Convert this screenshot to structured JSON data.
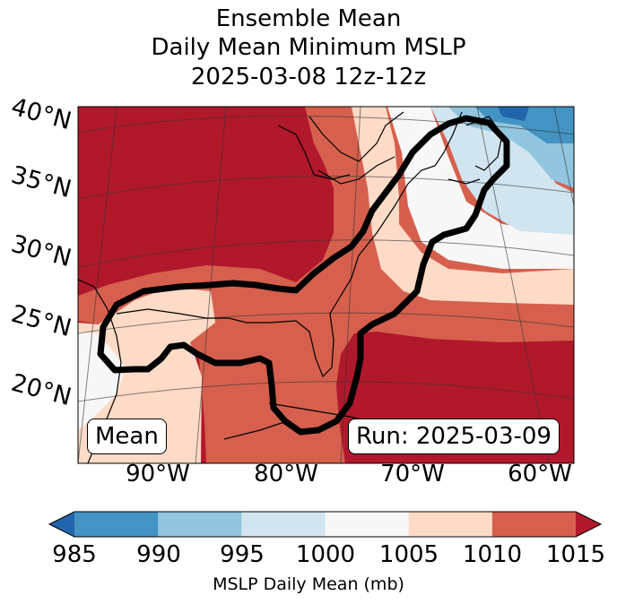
{
  "title": {
    "line1": "Ensemble Mean",
    "line2": "Daily Mean Minimum MSLP",
    "line3": "2025-03-08 12z-12z"
  },
  "map": {
    "lat_labels": [
      "40°N",
      "35°N",
      "30°N",
      "25°N",
      "20°N"
    ],
    "lon_labels": [
      "90°W",
      "80°W",
      "70°W",
      "60°W"
    ],
    "mean_label": "Mean",
    "run_label": "Run: 2025-03-09",
    "contour_color": "#000000",
    "coast_icon": "coastline-outline"
  },
  "colorbar": {
    "ticks": [
      "985",
      "990",
      "995",
      "1000",
      "1005",
      "1010",
      "1015"
    ],
    "label": "MSLP Daily Mean (mb)",
    "colors": [
      "#2166ac",
      "#4393c3",
      "#92c5de",
      "#d1e5f0",
      "#f7f7f7",
      "#fddbc7",
      "#d6604d",
      "#b2182b"
    ],
    "extend": "both"
  }
}
